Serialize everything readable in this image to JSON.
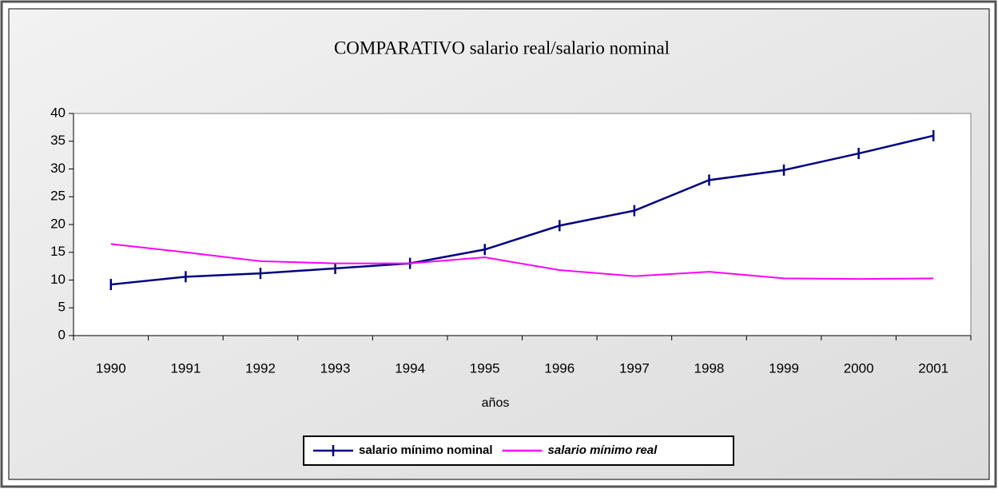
{
  "chart_data": {
    "type": "line",
    "title": "COMPARATIVO salario real/salario nominal",
    "x_label": "años",
    "categories": [
      "1990",
      "1991",
      "1992",
      "1993",
      "1994",
      "1995",
      "1996",
      "1997",
      "1998",
      "1999",
      "2000",
      "2001"
    ],
    "series": [
      {
        "name": "salario mínimo nominal",
        "color": "#000080",
        "marker": true,
        "values": [
          9.2,
          10.6,
          11.2,
          12.1,
          13.0,
          15.5,
          19.8,
          22.5,
          28.0,
          29.8,
          32.8,
          36.0
        ]
      },
      {
        "name": "salario mínimo real",
        "color": "#ff00ff",
        "marker": false,
        "values": [
          16.5,
          15.0,
          13.4,
          13.0,
          13.0,
          14.1,
          11.8,
          10.7,
          11.5,
          10.3,
          10.2,
          10.3
        ]
      }
    ],
    "ylim": [
      0,
      40
    ],
    "yticks": [
      0,
      5,
      10,
      15,
      20,
      25,
      30,
      35,
      40
    ],
    "grid": false,
    "legend": "bottom"
  }
}
